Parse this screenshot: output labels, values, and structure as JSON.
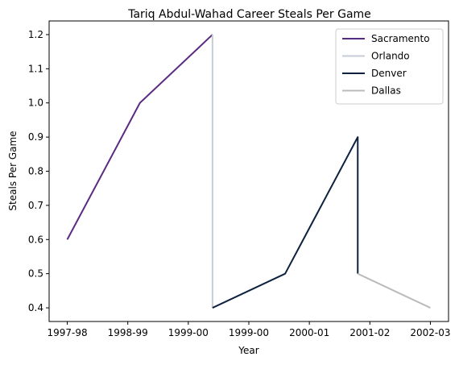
{
  "chart_data": {
    "type": "line",
    "title": "Tariq Abdul-Wahad Career Steals Per Game",
    "xlabel": "Year",
    "ylabel": "Steals Per Game",
    "x_ticks": [
      "1997-98",
      "1998-99",
      "1999-00",
      "1999-00",
      "2000-01",
      "2001-02",
      "2002-03"
    ],
    "xlim": [
      -0.25,
      5.25
    ],
    "ylim": [
      0.36,
      1.24
    ],
    "y_ticks": [
      0.4,
      0.5,
      0.6,
      0.7,
      0.8,
      0.9,
      1.0,
      1.1,
      1.2
    ],
    "y_tick_labels": [
      "0.4",
      "0.5",
      "0.6",
      "0.7",
      "0.8",
      "0.9",
      "1.0",
      "1.1",
      "1.2"
    ],
    "grid": false,
    "legend_position": "top-right",
    "series": [
      {
        "name": "Sacramento",
        "color": "#5B2B82",
        "points": [
          [
            0,
            0.6
          ],
          [
            1,
            1.0
          ],
          [
            2,
            1.2
          ]
        ]
      },
      {
        "name": "Orlando",
        "color": "#C4CED4",
        "points": [
          [
            2,
            1.2
          ],
          [
            2,
            0.4
          ]
        ]
      },
      {
        "name": "Denver",
        "color": "#0E2240",
        "points": [
          [
            2,
            0.4
          ],
          [
            3,
            0.5
          ],
          [
            4,
            0.9
          ],
          [
            4,
            0.5
          ]
        ]
      },
      {
        "name": "Dallas",
        "color": "#BBBBBB",
        "points": [
          [
            4,
            0.5
          ],
          [
            5,
            0.4
          ]
        ]
      }
    ]
  }
}
